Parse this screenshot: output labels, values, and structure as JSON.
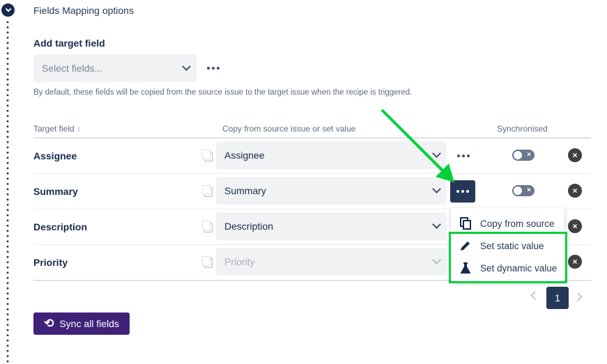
{
  "section_title": "Fields Mapping options",
  "add_target": {
    "label": "Add target field",
    "placeholder": "Select fields...",
    "help": "By default, these fields will be copied from the source issue to the target issue when the recipe is triggered."
  },
  "table": {
    "headers": {
      "target": "Target field",
      "source": "Copy from source issue or set value",
      "sync": "Synchronised"
    },
    "rows": [
      {
        "target": "Assignee",
        "value": "Assignee",
        "synchronised": false,
        "disabled": false
      },
      {
        "target": "Summary",
        "value": "Summary",
        "synchronised": false,
        "disabled": false
      },
      {
        "target": "Description",
        "value": "Description",
        "synchronised": false,
        "disabled": false
      },
      {
        "target": "Priority",
        "value": "Priority",
        "synchronised": false,
        "disabled": true
      }
    ]
  },
  "menu": {
    "items": [
      {
        "label": "Copy from source",
        "icon": "copy-icon"
      },
      {
        "label": "Set static value",
        "icon": "pencil-icon"
      },
      {
        "label": "Set dynamic value",
        "icon": "flask-icon"
      }
    ]
  },
  "pagination": {
    "current": "1"
  },
  "sync_button": "Sync all fields",
  "colors": {
    "highlight": "#00d13a",
    "primary": "#3f2278",
    "dark": "#253858"
  }
}
